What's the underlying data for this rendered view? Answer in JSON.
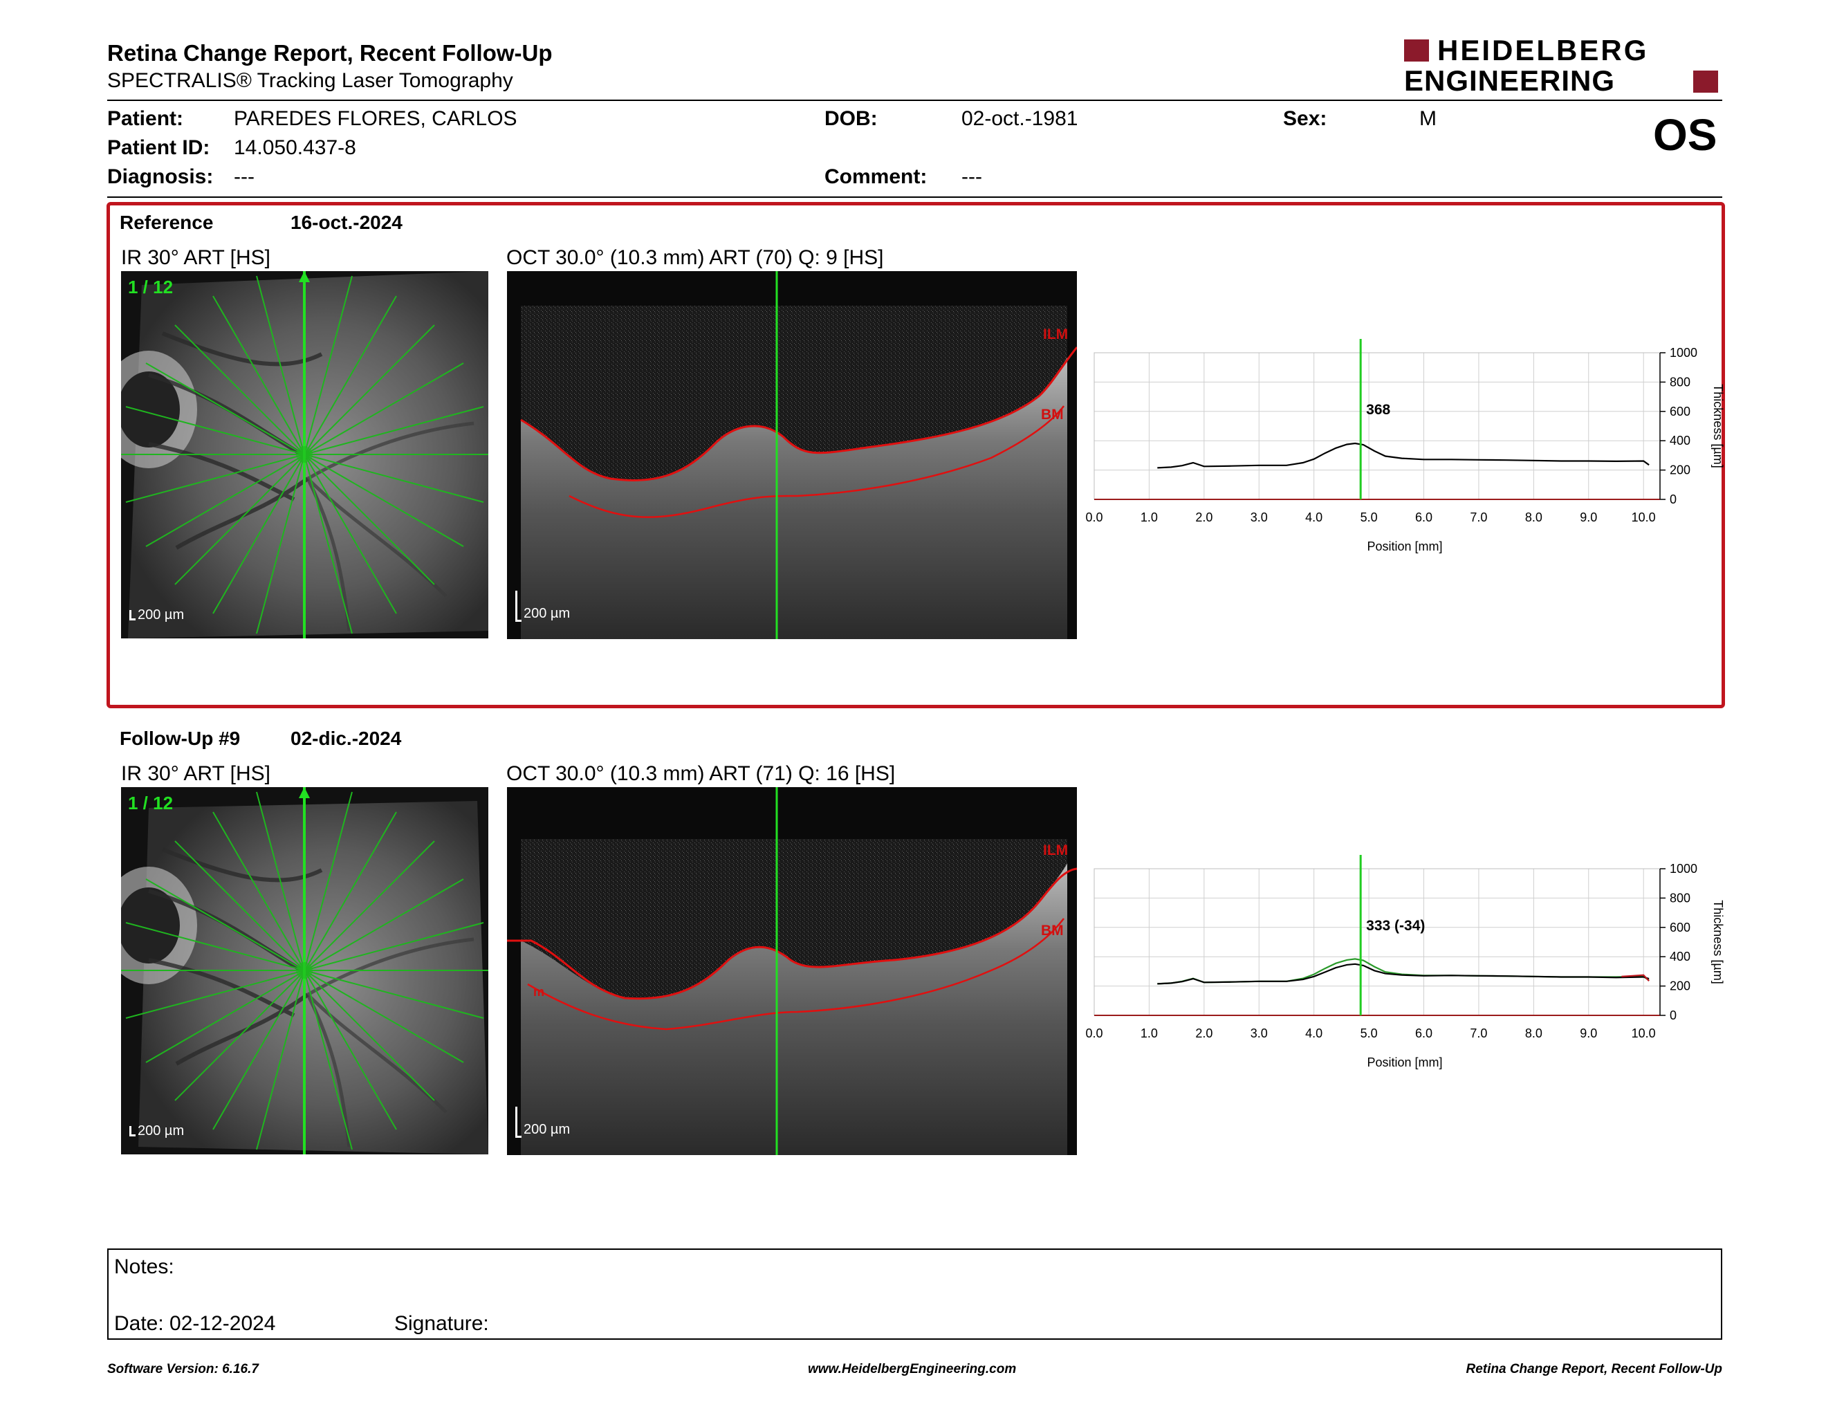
{
  "report": {
    "title": "Retina Change Report, Recent Follow-Up",
    "subtitle": "SPECTRALIS® Tracking Laser Tomography",
    "logo_line1": "HEIDELBERG",
    "logo_line2": "ENGINEERING",
    "eye": "OS"
  },
  "patient": {
    "name_label": "Patient:",
    "name": "PAREDES FLORES, CARLOS",
    "id_label": "Patient ID:",
    "id": "14.050.437-8",
    "diagnosis_label": "Diagnosis:",
    "diagnosis": "---",
    "dob_label": "DOB:",
    "dob": "02-oct.-1981",
    "comment_label": "Comment:",
    "comment": "---",
    "sex_label": "Sex:",
    "sex": "M"
  },
  "reference": {
    "label": "Reference",
    "date": "16-oct.-2024",
    "ir_title": "IR 30° ART [HS]",
    "oct_title": "OCT 30.0° (10.3 mm) ART (70) Q: 9 [HS]",
    "scan_index": "1 / 12",
    "scale_ir": "200 µm",
    "scale_oct": "200 µm",
    "layer_top": "ILM",
    "layer_bottom": "BM",
    "readout": "368"
  },
  "followup": {
    "label": "Follow-Up #9",
    "date": "02-dic.-2024",
    "ir_title": "IR 30° ART [HS]",
    "oct_title": "OCT 30.0° (10.3 mm) ART (71) Q: 16 [HS]",
    "scan_index": "1 / 12",
    "scale_ir": "200 µm",
    "scale_oct": "200 µm",
    "layer_top": "ILM",
    "layer_bottom": "BM",
    "layer_extra": "m",
    "readout": "333 (-34)"
  },
  "chart_data": [
    {
      "type": "line",
      "title": "",
      "xlabel": "Position [mm]",
      "ylabel": "Thickness [µm]",
      "xlim": [
        0,
        10.3
      ],
      "ylim": [
        0,
        1000
      ],
      "xticks": [
        "0.0",
        "1.0",
        "2.0",
        "3.0",
        "4.0",
        "5.0",
        "6.0",
        "7.0",
        "8.0",
        "9.0",
        "10.0"
      ],
      "yticks": [
        "0",
        "200",
        "400",
        "600",
        "800",
        "1000"
      ],
      "cursor_x": 4.85,
      "annotation": "368",
      "grid": true,
      "series": [
        {
          "color": "#000000",
          "x": [
            1.15,
            1.4,
            1.6,
            1.8,
            2.0,
            2.5,
            3.0,
            3.5,
            3.8,
            4.0,
            4.2,
            4.4,
            4.6,
            4.75,
            4.9,
            5.1,
            5.3,
            5.6,
            6.0,
            6.5,
            7.0,
            7.5,
            8.0,
            8.5,
            9.0,
            9.5,
            10.0,
            10.1
          ],
          "y": [
            215,
            220,
            230,
            250,
            225,
            228,
            232,
            232,
            250,
            275,
            315,
            350,
            375,
            382,
            372,
            330,
            295,
            280,
            272,
            272,
            270,
            268,
            265,
            262,
            262,
            260,
            262,
            235
          ]
        }
      ]
    },
    {
      "type": "line",
      "title": "",
      "xlabel": "Position [mm]",
      "ylabel": "Thickness [µm]",
      "xlim": [
        0,
        10.3
      ],
      "ylim": [
        0,
        1000
      ],
      "xticks": [
        "0.0",
        "1.0",
        "2.0",
        "3.0",
        "4.0",
        "5.0",
        "6.0",
        "7.0",
        "8.0",
        "9.0",
        "10.0"
      ],
      "yticks": [
        "0",
        "200",
        "400",
        "600",
        "800",
        "1000"
      ],
      "cursor_x": 4.85,
      "annotation": "333 (-34)",
      "grid": true,
      "series": [
        {
          "color": "#2a9a2a",
          "x": [
            1.15,
            1.4,
            1.6,
            1.8,
            2.0,
            2.5,
            3.0,
            3.5,
            3.8,
            4.0,
            4.2,
            4.4,
            4.6,
            4.75,
            4.9,
            5.1,
            5.3,
            5.6,
            6.0,
            6.5,
            7.0,
            7.5,
            8.0,
            8.5,
            9.0,
            9.5,
            10.0,
            10.1
          ],
          "y": [
            215,
            220,
            232,
            252,
            225,
            228,
            232,
            232,
            252,
            280,
            320,
            355,
            378,
            385,
            375,
            332,
            296,
            280,
            272,
            272,
            270,
            268,
            265,
            262,
            262,
            262,
            265,
            238
          ]
        },
        {
          "color": "#000000",
          "x": [
            1.15,
            1.4,
            1.6,
            1.8,
            2.0,
            2.5,
            3.0,
            3.5,
            3.8,
            4.0,
            4.2,
            4.4,
            4.6,
            4.75,
            4.9,
            5.1,
            5.3,
            5.6,
            6.0,
            6.5,
            7.0,
            7.5,
            8.0,
            8.5,
            9.0,
            9.5,
            10.0,
            10.1
          ],
          "y": [
            215,
            220,
            230,
            250,
            225,
            228,
            232,
            232,
            245,
            265,
            295,
            325,
            345,
            350,
            340,
            305,
            285,
            275,
            270,
            272,
            270,
            268,
            265,
            262,
            262,
            258,
            262,
            250
          ]
        },
        {
          "color": "#c0151e",
          "x": [
            9.6,
            9.8,
            10.0,
            10.1
          ],
          "y": [
            265,
            270,
            275,
            235
          ]
        }
      ]
    }
  ],
  "notes": {
    "notes_label": "Notes:",
    "date_label": "Date: 02-12-2024",
    "signature_label": "Signature:"
  },
  "footer": {
    "left": "Software Version: 6.16.7",
    "center": "www.HeidelbergEngineering.com",
    "right": "Retina Change Report, Recent Follow-Up"
  },
  "colors": {
    "accent_red": "#c0151e",
    "scan_green": "#22cc22"
  }
}
